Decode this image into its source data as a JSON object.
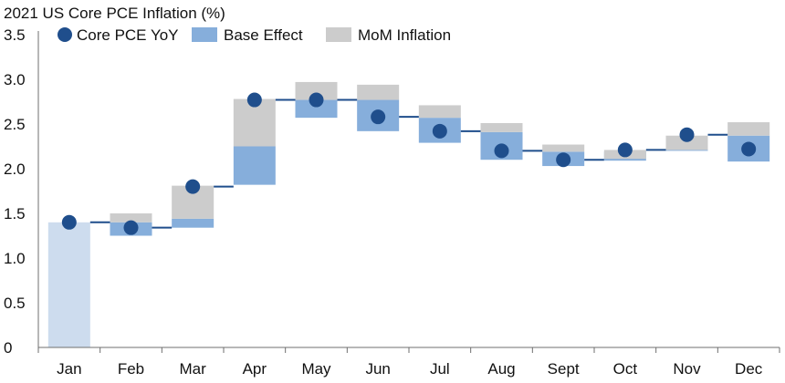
{
  "chart_data": {
    "type": "bar",
    "title": "2021 US Core PCE Inflation (%)",
    "xlabel": "",
    "ylabel": "",
    "categories": [
      "Jan",
      "Feb",
      "Mar",
      "Apr",
      "May",
      "Jun",
      "Jul",
      "Aug",
      "Sept",
      "Oct",
      "Nov",
      "Dec"
    ],
    "ylim": [
      0,
      3.5
    ],
    "yticks": [
      "0",
      "0.5",
      "1.0",
      "1.5",
      "2.0",
      "2.5",
      "3.0",
      "3.5"
    ],
    "legend": {
      "placement": "top",
      "entries": [
        "Core PCE YoY",
        "Base Effect",
        "MoM Inflation"
      ]
    },
    "series": [
      {
        "name": "Core PCE YoY",
        "kind": "dot",
        "color": "#1f4e8c",
        "values": [
          1.4,
          1.34,
          1.8,
          2.77,
          2.77,
          2.58,
          2.42,
          2.2,
          2.1,
          2.21,
          2.38,
          2.22
        ]
      },
      {
        "name": "Base Effect",
        "kind": "bar-range",
        "color": "#86aedb",
        "ranges": [
          [
            1.25,
            1.4
          ],
          [
            1.34,
            1.44
          ],
          [
            1.82,
            2.25
          ],
          [
            2.57,
            2.77
          ],
          [
            2.42,
            2.77
          ],
          [
            2.29,
            2.57
          ],
          [
            2.1,
            2.41
          ],
          [
            2.03,
            2.19
          ],
          [
            2.09,
            2.19
          ],
          [
            2.2,
            2.21
          ],
          [
            2.08,
            2.37
          ]
        ]
      },
      {
        "name": "MoM Inflation",
        "kind": "bar-range",
        "color": "#cccccc",
        "ranges": [
          [
            1.4,
            1.5
          ],
          [
            1.44,
            1.81
          ],
          [
            2.25,
            2.78
          ],
          [
            2.77,
            2.97
          ],
          [
            2.77,
            2.94
          ],
          [
            2.57,
            2.71
          ],
          [
            2.41,
            2.51
          ],
          [
            2.19,
            2.27
          ],
          [
            2.11,
            2.21
          ],
          [
            2.21,
            2.37
          ],
          [
            2.37,
            2.52
          ]
        ]
      }
    ],
    "start_bar": {
      "category": "Jan",
      "value": 1.4,
      "color": "#cddcee"
    },
    "connector_color": "#1f4e8c",
    "axis_color": "#6f6f6f"
  }
}
